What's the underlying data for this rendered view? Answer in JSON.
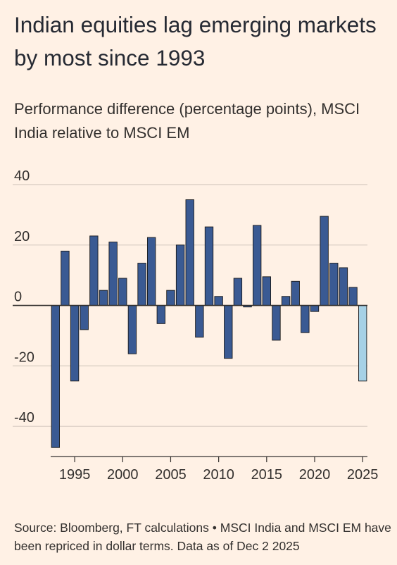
{
  "title": "Indian equities lag emerging markets by most since 1993",
  "subtitle": "Performance difference (percentage points), MSCI India relative to MSCI EM",
  "source": "Source: Bloomberg, FT calculations • MSCI India and MSCI EM have been repriced in dollar terms. Data as of Dec 2 2025",
  "colors": {
    "background": "#fff1e5",
    "bar": "#3a5a93",
    "bar_highlight": "#a6d1e6",
    "bar_outline": "#1a1a1a",
    "grid": "#d6cbc1",
    "zero_line": "#33302e"
  },
  "chart_data": {
    "type": "bar",
    "title": "Indian equities lag emerging markets by most since 1993",
    "subtitle": "Performance difference (percentage points), MSCI India relative to MSCI EM",
    "xlabel": "",
    "ylabel": "",
    "categories": [
      1993,
      1994,
      1995,
      1996,
      1997,
      1998,
      1999,
      2000,
      2001,
      2002,
      2003,
      2004,
      2005,
      2006,
      2007,
      2008,
      2009,
      2010,
      2011,
      2012,
      2013,
      2014,
      2015,
      2016,
      2017,
      2018,
      2019,
      2020,
      2021,
      2022,
      2023,
      2024,
      2025
    ],
    "values": [
      -47,
      18,
      -25,
      -8,
      23,
      5,
      21,
      9,
      -16,
      14,
      22.5,
      -6,
      5,
      20,
      35,
      -10.5,
      26,
      3,
      -17.5,
      9,
      -0.5,
      26.5,
      9.5,
      -11.5,
      3,
      8,
      -9,
      -2,
      29.5,
      14,
      12.5,
      6,
      -25
    ],
    "highlight_category": 2025,
    "xticks": [
      1995,
      2000,
      2005,
      2010,
      2015,
      2020,
      2025
    ],
    "yticks": [
      40,
      20,
      0,
      -20,
      -40
    ],
    "ylim": [
      -50,
      40
    ],
    "grid": true,
    "legend": "none"
  }
}
